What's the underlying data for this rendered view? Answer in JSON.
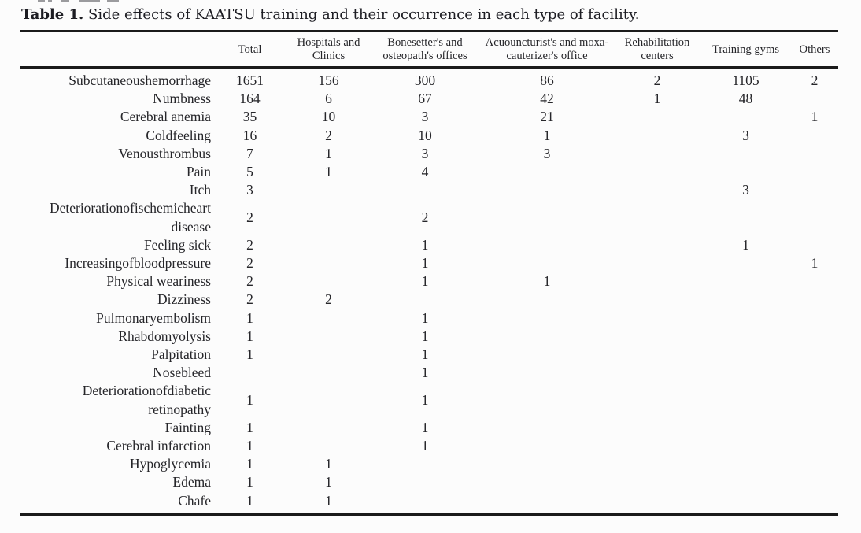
{
  "title": {
    "label": "Table 1.",
    "text": " Side effects of KAATSU training and their occurrence in each type of facility."
  },
  "colors": {
    "rule": "#1b1b1b",
    "text": "#26262a",
    "background": "#fcfcfc"
  },
  "table": {
    "columns": [
      {
        "label": ""
      },
      {
        "label": "Total"
      },
      {
        "label": "Hospitals and Clinics"
      },
      {
        "label": "Bonesetter's and osteopath's offices"
      },
      {
        "label": "Acuouncturist's and moxa-cauterizer's office"
      },
      {
        "label": "Rehabilitation centers"
      },
      {
        "label": "Training gyms"
      },
      {
        "label": "Others"
      }
    ],
    "rows": [
      {
        "label": "Subcutaneoushemorrhage",
        "values": [
          "1651",
          "156",
          "300",
          "86",
          "2",
          "1105",
          "2"
        ]
      },
      {
        "label": "Numbness",
        "values": [
          "164",
          "6",
          "67",
          "42",
          "1",
          "48",
          ""
        ]
      },
      {
        "label": "Cerebral anemia",
        "values": [
          "35",
          "10",
          "3",
          "21",
          "",
          "",
          "1"
        ]
      },
      {
        "label": "Coldfeeling",
        "values": [
          "16",
          "2",
          "10",
          "1",
          "",
          "3",
          ""
        ]
      },
      {
        "label": "Venousthrombus",
        "values": [
          "7",
          "1",
          "3",
          "3",
          "",
          "",
          ""
        ]
      },
      {
        "label": "Pain",
        "values": [
          "5",
          "1",
          "4",
          "",
          "",
          "",
          ""
        ]
      },
      {
        "label": "Itch",
        "values": [
          "3",
          "",
          "",
          "",
          "",
          "3",
          ""
        ]
      },
      {
        "label": "Deteriorationofischemicheart disease",
        "values": [
          "2",
          "",
          "2",
          "",
          "",
          "",
          ""
        ]
      },
      {
        "label": "Feeling sick",
        "values": [
          "2",
          "",
          "1",
          "",
          "",
          "1",
          ""
        ]
      },
      {
        "label": "Increasingofbloodpressure",
        "values": [
          "2",
          "",
          "1",
          "",
          "",
          "",
          "1"
        ]
      },
      {
        "label": "Physical weariness",
        "values": [
          "2",
          "",
          "1",
          "1",
          "",
          "",
          ""
        ]
      },
      {
        "label": "Dizziness",
        "values": [
          "2",
          "2",
          "",
          "",
          "",
          "",
          ""
        ]
      },
      {
        "label": "Pulmonaryembolism",
        "values": [
          "1",
          "",
          "1",
          "",
          "",
          "",
          ""
        ]
      },
      {
        "label": "Rhabdomyolysis",
        "values": [
          "1",
          "",
          "1",
          "",
          "",
          "",
          ""
        ]
      },
      {
        "label": "Palpitation",
        "values": [
          "1",
          "",
          "1",
          "",
          "",
          "",
          ""
        ]
      },
      {
        "label": "Nosebleed",
        "values": [
          "",
          "",
          "1",
          "",
          "",
          "",
          ""
        ]
      },
      {
        "label": "Deteriorationofdiabetic retinopathy",
        "values": [
          "1",
          "",
          "1",
          "",
          "",
          "",
          ""
        ]
      },
      {
        "label": "Fainting",
        "values": [
          "1",
          "",
          "1",
          "",
          "",
          "",
          ""
        ]
      },
      {
        "label": "Cerebral infarction",
        "values": [
          "1",
          "",
          "1",
          "",
          "",
          "",
          ""
        ]
      },
      {
        "label": "Hypoglycemia",
        "values": [
          "1",
          "1",
          "",
          "",
          "",
          "",
          ""
        ]
      },
      {
        "label": "Edema",
        "values": [
          "1",
          "1",
          "",
          "",
          "",
          "",
          ""
        ]
      },
      {
        "label": "Chafe",
        "values": [
          "1",
          "1",
          "",
          "",
          "",
          "",
          ""
        ]
      }
    ]
  }
}
